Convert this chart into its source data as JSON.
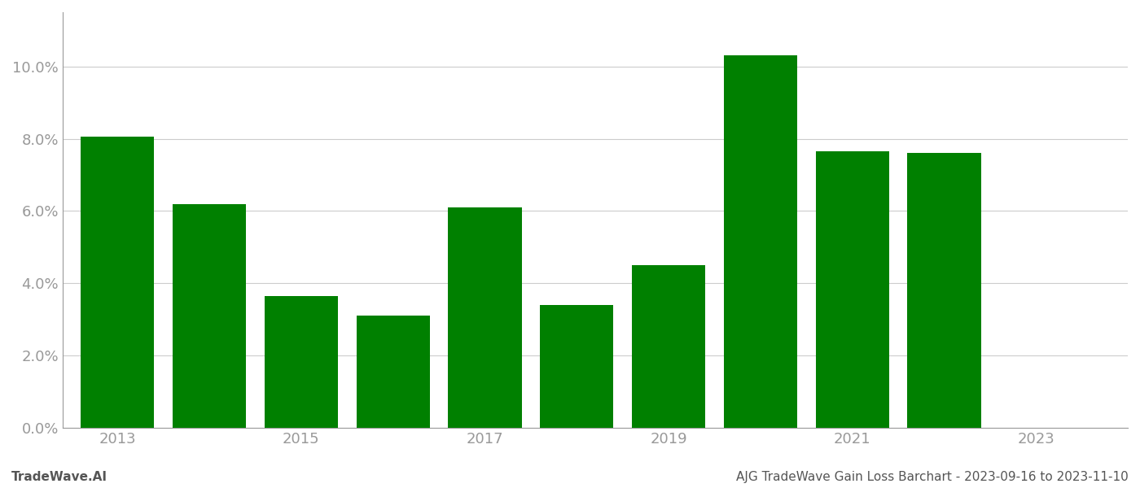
{
  "years": [
    2013,
    2014,
    2015,
    2016,
    2017,
    2018,
    2019,
    2020,
    2021,
    2022
  ],
  "values": [
    0.0805,
    0.062,
    0.0365,
    0.031,
    0.061,
    0.034,
    0.045,
    0.103,
    0.0765,
    0.076
  ],
  "bar_color": "#008000",
  "bg_color": "#ffffff",
  "grid_color": "#cccccc",
  "tick_label_color": "#999999",
  "footer_left": "TradeWave.AI",
  "footer_right": "AJG TradeWave Gain Loss Barchart - 2023-09-16 to 2023-11-10",
  "footer_color": "#555555",
  "footer_fontsize": 11,
  "ylim": [
    0,
    0.115
  ],
  "yticks": [
    0.0,
    0.02,
    0.04,
    0.06,
    0.08,
    0.1
  ],
  "xtick_positions": [
    2013,
    2015,
    2017,
    2019,
    2021,
    2023
  ],
  "xlim_left": 2012.4,
  "xlim_right": 2024.0,
  "bar_width": 0.8,
  "tick_fontsize": 13,
  "spine_color": "#999999"
}
